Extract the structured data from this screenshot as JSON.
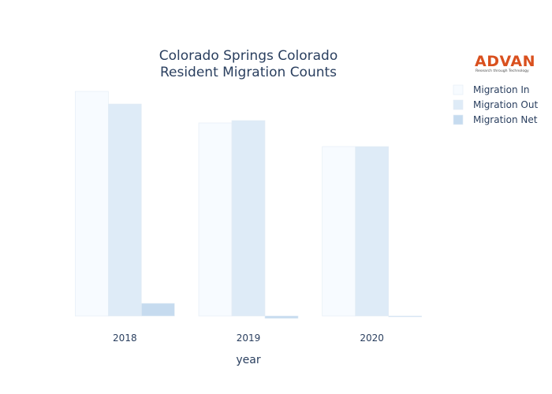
{
  "logo": {
    "word": "ADVAN",
    "tagline": "Research through Technology",
    "color": "#d9501e"
  },
  "chart_data": {
    "type": "bar",
    "title": [
      "Colorado Springs Colorado",
      "Resident Migration Counts"
    ],
    "xlabel": "year",
    "ylabel": "",
    "categories": [
      "2018",
      "2019",
      "2020"
    ],
    "ylim": [
      -100,
      28500
    ],
    "yaxis_visible": false,
    "grid": false,
    "legend_position": "top-right",
    "series": [
      {
        "name": "Migration In",
        "values": [
          28500,
          24500,
          21500
        ],
        "color": "#f7fbff"
      },
      {
        "name": "Migration Out",
        "values": [
          26900,
          24800,
          21500
        ],
        "color": "#deebf7"
      },
      {
        "name": "Migration Net",
        "values": [
          1600,
          -300,
          -20
        ],
        "color": "#c6dbef"
      }
    ]
  }
}
